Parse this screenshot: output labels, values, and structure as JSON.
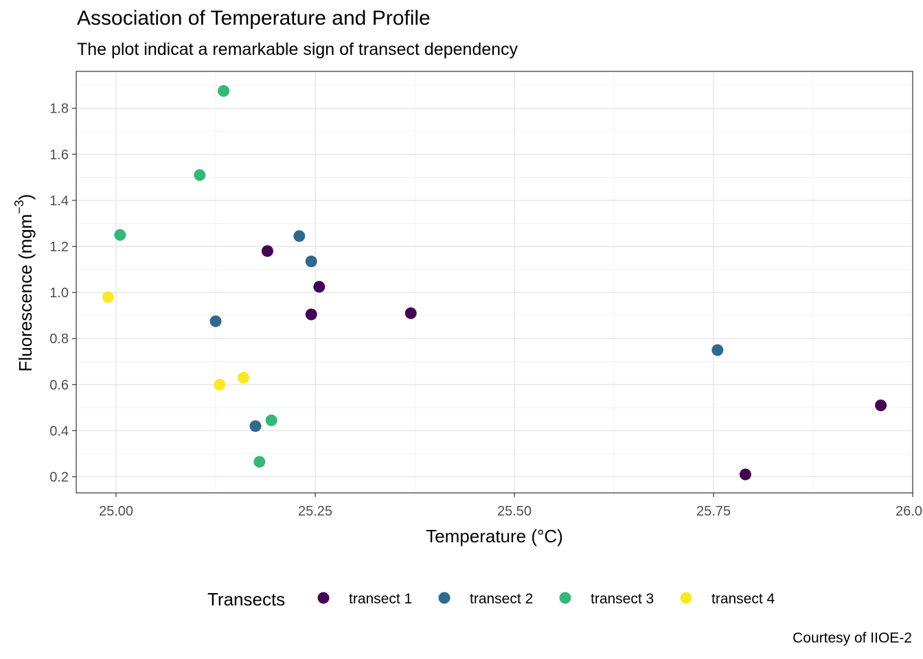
{
  "chart_data": {
    "type": "scatter",
    "title": "Association of Temperature and Profile",
    "subtitle": "The plot indicat a remarkable sign of transect dependency",
    "caption": "Courtesy of IIOE-2",
    "xlabel": "Temperature (°C)",
    "ylabel_main": "Fluorescence (mgm",
    "ylabel_sup": "−3",
    "ylabel_close": ")",
    "xlim": [
      24.95,
      26.0
    ],
    "ylim": [
      0.13,
      1.96
    ],
    "xticks": [
      25.0,
      25.25,
      25.5,
      25.75,
      26.0
    ],
    "xtick_labels": [
      "25.00",
      "25.25",
      "25.50",
      "25.75",
      "26.00"
    ],
    "yticks": [
      0.2,
      0.4,
      0.6,
      0.8,
      1.0,
      1.2,
      1.4,
      1.6,
      1.8
    ],
    "ytick_labels": [
      "0.2",
      "0.4",
      "0.6",
      "0.8",
      "1.0",
      "1.2",
      "1.4",
      "1.6",
      "1.8"
    ],
    "grid": true,
    "legend": {
      "title": "Transects",
      "position": "bottom"
    },
    "series": [
      {
        "name": "transect 1",
        "color": "#440154",
        "points": [
          [
            25.19,
            1.18
          ],
          [
            25.255,
            1.025
          ],
          [
            25.245,
            0.905
          ],
          [
            25.37,
            0.91
          ],
          [
            25.79,
            0.21
          ],
          [
            25.96,
            0.51
          ]
        ]
      },
      {
        "name": "transect 2",
        "color": "#31688E",
        "points": [
          [
            25.23,
            1.245
          ],
          [
            25.245,
            1.135
          ],
          [
            25.125,
            0.875
          ],
          [
            25.175,
            0.42
          ],
          [
            25.755,
            0.75
          ]
        ]
      },
      {
        "name": "transect 3",
        "color": "#35B779",
        "points": [
          [
            25.135,
            1.875
          ],
          [
            25.105,
            1.51
          ],
          [
            25.005,
            1.25
          ],
          [
            25.195,
            0.445
          ],
          [
            25.18,
            0.265
          ]
        ]
      },
      {
        "name": "transect 4",
        "color": "#FDE725",
        "points": [
          [
            24.99,
            0.98
          ],
          [
            25.13,
            0.6
          ],
          [
            25.16,
            0.63
          ]
        ]
      }
    ]
  }
}
